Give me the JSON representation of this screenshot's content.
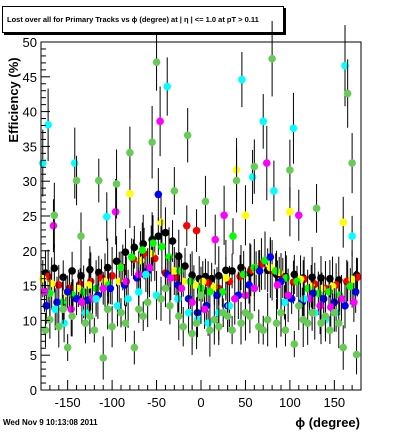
{
  "chart_data": {
    "type": "scatter",
    "title": "Lost over all for Primary Tracks vs ϕ (degree) at | η | <= 1.0 at pT > 0.11",
    "xlabel": "ϕ (degree)",
    "ylabel": "Efficiency (%)",
    "xlim": [
      -180,
      180
    ],
    "ylim": [
      0,
      50
    ],
    "xticks": [
      -150,
      -100,
      -50,
      0,
      50,
      100,
      150
    ],
    "yticks": [
      0,
      5,
      10,
      15,
      20,
      25,
      30,
      35,
      40,
      45,
      50
    ],
    "grid": false,
    "legend": "none",
    "series": [
      {
        "color": "#000000",
        "points": [
          [
            -175,
            16.8
          ],
          [
            -165,
            17.5
          ],
          [
            -155,
            16.2
          ],
          [
            -145,
            17.1
          ],
          [
            -135,
            16.4
          ],
          [
            -125,
            17.3
          ],
          [
            -115,
            16.9
          ],
          [
            -105,
            17.6
          ],
          [
            -95,
            18.5
          ],
          [
            -85,
            19.8
          ],
          [
            -75,
            20.5
          ],
          [
            -65,
            21.0
          ],
          [
            -55,
            21.6
          ],
          [
            -48,
            22.1
          ],
          [
            -40,
            22.6
          ],
          [
            -32,
            21.4
          ],
          [
            -25,
            19.2
          ],
          [
            -18,
            17.8
          ],
          [
            -10,
            16.5
          ],
          [
            -2,
            16.0
          ],
          [
            5,
            16.3
          ],
          [
            12,
            16.0
          ],
          [
            20,
            16.4
          ],
          [
            28,
            17.2
          ],
          [
            35,
            17.1
          ],
          [
            45,
            17.6
          ],
          [
            55,
            16.8
          ],
          [
            65,
            17.4
          ],
          [
            75,
            17.2
          ],
          [
            85,
            16.6
          ],
          [
            95,
            16.3
          ],
          [
            105,
            16.6
          ],
          [
            115,
            16.1
          ],
          [
            125,
            16.2
          ],
          [
            135,
            16.1
          ],
          [
            145,
            16.0
          ],
          [
            155,
            15.8
          ],
          [
            165,
            15.6
          ],
          [
            175,
            16.5
          ]
        ]
      },
      {
        "color": "#ff0000",
        "points": [
          [
            -172,
            16.3
          ],
          [
            -160,
            15.1
          ],
          [
            -148,
            14.6
          ],
          [
            -136,
            15.2
          ],
          [
            -124,
            15.6
          ],
          [
            -112,
            16.1
          ],
          [
            -100,
            16.4
          ],
          [
            -88,
            17.6
          ],
          [
            -76,
            18.8
          ],
          [
            -64,
            19.6
          ],
          [
            -52,
            18.9
          ],
          [
            -40,
            16.8
          ],
          [
            -28,
            16.2
          ],
          [
            -16,
            23.6
          ],
          [
            -5,
            22.9
          ],
          [
            8,
            15.4
          ],
          [
            20,
            14.6
          ],
          [
            32,
            15.6
          ],
          [
            44,
            16.3
          ],
          [
            56,
            17.2
          ],
          [
            68,
            18.1
          ],
          [
            80,
            17.2
          ],
          [
            92,
            16.1
          ],
          [
            104,
            15.5
          ],
          [
            116,
            15.9
          ],
          [
            128,
            15.2
          ],
          [
            140,
            14.6
          ],
          [
            152,
            15.1
          ],
          [
            164,
            15.6
          ],
          [
            176,
            16.2
          ]
        ]
      },
      {
        "color": "#ffff00",
        "points": [
          [
            -178,
            16.0
          ],
          [
            -168,
            15.3
          ],
          [
            -152,
            13.9
          ],
          [
            -138,
            14.6
          ],
          [
            -126,
            15.1
          ],
          [
            -108,
            15.6
          ],
          [
            -92,
            15.6
          ],
          [
            -80,
            28.2
          ],
          [
            -68,
            18.6
          ],
          [
            -56,
            19.6
          ],
          [
            -45,
            24.1
          ],
          [
            -30,
            17.1
          ],
          [
            -20,
            15.6
          ],
          [
            -8,
            15.1
          ],
          [
            2,
            15.6
          ],
          [
            15,
            14.8
          ],
          [
            28,
            16.1
          ],
          [
            40,
            31.6
          ],
          [
            50,
            25.1
          ],
          [
            62,
            17.1
          ],
          [
            78,
            17.6
          ],
          [
            88,
            16.9
          ],
          [
            100,
            25.6
          ],
          [
            112,
            15.9
          ],
          [
            124,
            14.9
          ],
          [
            136,
            14.6
          ],
          [
            148,
            14.9
          ],
          [
            160,
            24.1
          ],
          [
            170,
            15.9
          ]
        ]
      },
      {
        "color": "#00ff00",
        "points": [
          [
            -170,
            13.9
          ],
          [
            -156,
            12.6
          ],
          [
            -144,
            13.6
          ],
          [
            -132,
            14.1
          ],
          [
            -118,
            14.6
          ],
          [
            -104,
            15.1
          ],
          [
            -90,
            17.6
          ],
          [
            -78,
            19.1
          ],
          [
            -66,
            20.1
          ],
          [
            -54,
            21.1
          ],
          [
            -44,
            20.6
          ],
          [
            -36,
            19.1
          ],
          [
            -24,
            17.1
          ],
          [
            -12,
            15.6
          ],
          [
            0,
            14.6
          ],
          [
            10,
            14.1
          ],
          [
            24,
            14.1
          ],
          [
            36,
            22.1
          ],
          [
            48,
            16.6
          ],
          [
            60,
            17.6
          ],
          [
            72,
            18.6
          ],
          [
            84,
            17.1
          ],
          [
            96,
            16.1
          ],
          [
            108,
            15.6
          ],
          [
            120,
            14.6
          ],
          [
            132,
            13.9
          ],
          [
            144,
            14.1
          ],
          [
            156,
            13.6
          ],
          [
            168,
            14.9
          ]
        ]
      },
      {
        "color": "#0000ff",
        "points": [
          [
            -174,
            12.1
          ],
          [
            -162,
            12.6
          ],
          [
            -150,
            14.1
          ],
          [
            -140,
            13.1
          ],
          [
            -128,
            12.9
          ],
          [
            -116,
            13.6
          ],
          [
            -102,
            14.6
          ],
          [
            -86,
            15.1
          ],
          [
            -72,
            16.1
          ],
          [
            -60,
            17.1
          ],
          [
            -48,
            28.1
          ],
          [
            -38,
            16.6
          ],
          [
            -26,
            15.1
          ],
          [
            -14,
            13.1
          ],
          [
            -4,
            11.1
          ],
          [
            6,
            12.1
          ],
          [
            18,
            13.6
          ],
          [
            30,
            12.1
          ],
          [
            42,
            13.6
          ],
          [
            54,
            15.1
          ],
          [
            66,
            17.1
          ],
          [
            78,
            19.1
          ],
          [
            90,
            15.6
          ],
          [
            102,
            13.1
          ],
          [
            114,
            12.6
          ],
          [
            126,
            13.9
          ],
          [
            138,
            13.1
          ],
          [
            150,
            12.6
          ],
          [
            162,
            12.1
          ],
          [
            174,
            14.1
          ]
        ]
      },
      {
        "color": "#ff00ff",
        "points": [
          [
            -176,
            14.1
          ],
          [
            -166,
            23.6
          ],
          [
            -146,
            11.6
          ],
          [
            -134,
            12.6
          ],
          [
            -122,
            13.1
          ],
          [
            -110,
            14.6
          ],
          [
            -96,
            25.6
          ],
          [
            -84,
            15.6
          ],
          [
            -70,
            16.6
          ],
          [
            -58,
            17.6
          ],
          [
            -46,
            38.6
          ],
          [
            -34,
            16.1
          ],
          [
            -22,
            14.6
          ],
          [
            -10,
            12.6
          ],
          [
            4,
            11.6
          ],
          [
            16,
            21.6
          ],
          [
            26,
            25.1
          ],
          [
            38,
            13.1
          ],
          [
            50,
            13.6
          ],
          [
            60,
            14.6
          ],
          [
            74,
            32.6
          ],
          [
            86,
            15.1
          ],
          [
            98,
            13.6
          ],
          [
            110,
            25.1
          ],
          [
            122,
            13.1
          ],
          [
            134,
            12.1
          ],
          [
            146,
            11.9
          ],
          [
            158,
            13.1
          ],
          [
            172,
            12.6
          ]
        ]
      },
      {
        "color": "#00ffff",
        "points": [
          [
            -178,
            32.6
          ],
          [
            -172,
            38.1
          ],
          [
            -164,
            11.6
          ],
          [
            -154,
            9.6
          ],
          [
            -142,
            32.6
          ],
          [
            -130,
            11.1
          ],
          [
            -118,
            13.1
          ],
          [
            -106,
            24.9
          ],
          [
            -94,
            12.1
          ],
          [
            -82,
            13.1
          ],
          [
            -70,
            14.1
          ],
          [
            -62,
            16.6
          ],
          [
            -50,
            13.6
          ],
          [
            -38,
            43.6
          ],
          [
            -26,
            13.1
          ],
          [
            -14,
            11.1
          ],
          [
            -4,
            10.1
          ],
          [
            8,
            9.6
          ],
          [
            20,
            11.1
          ],
          [
            32,
            12.1
          ],
          [
            46,
            44.6
          ],
          [
            58,
            30.6
          ],
          [
            70,
            38.6
          ],
          [
            82,
            28.6
          ],
          [
            94,
            12.6
          ],
          [
            104,
            37.6
          ],
          [
            116,
            13.1
          ],
          [
            128,
            11.1
          ],
          [
            140,
            10.1
          ],
          [
            152,
            11.1
          ],
          [
            162,
            46.6
          ],
          [
            170,
            22.1
          ]
        ]
      },
      {
        "color": "#66cc55",
        "points": [
          [
            -175,
            8.6
          ],
          [
            -170,
            10.1
          ],
          [
            -165,
            25.1
          ],
          [
            -160,
            9.1
          ],
          [
            -155,
            11.6
          ],
          [
            -150,
            6.1
          ],
          [
            -145,
            10.6
          ],
          [
            -140,
            30.1
          ],
          [
            -135,
            22.1
          ],
          [
            -130,
            9.6
          ],
          [
            -125,
            10.6
          ],
          [
            -120,
            8.6
          ],
          [
            -115,
            30.1
          ],
          [
            -110,
            4.6
          ],
          [
            -105,
            11.6
          ],
          [
            -100,
            9.1
          ],
          [
            -95,
            29.6
          ],
          [
            -90,
            11.1
          ],
          [
            -85,
            9.6
          ],
          [
            -80,
            34.1
          ],
          [
            -75,
            6.1
          ],
          [
            -70,
            11.6
          ],
          [
            -65,
            10.6
          ],
          [
            -60,
            12.6
          ],
          [
            -55,
            35.6
          ],
          [
            -50,
            47.1
          ],
          [
            -45,
            13.1
          ],
          [
            -40,
            14.6
          ],
          [
            -35,
            12.1
          ],
          [
            -30,
            28.6
          ],
          [
            -25,
            10.6
          ],
          [
            -20,
            9.1
          ],
          [
            -15,
            36.6
          ],
          [
            -10,
            8.1
          ],
          [
            -5,
            9.6
          ],
          [
            0,
            13.6
          ],
          [
            5,
            27.1
          ],
          [
            10,
            8.6
          ],
          [
            15,
            10.1
          ],
          [
            20,
            9.1
          ],
          [
            25,
            11.1
          ],
          [
            30,
            10.6
          ],
          [
            35,
            8.6
          ],
          [
            40,
            30.1
          ],
          [
            45,
            9.6
          ],
          [
            50,
            11.1
          ],
          [
            55,
            10.6
          ],
          [
            60,
            32.1
          ],
          [
            65,
            9.1
          ],
          [
            70,
            8.6
          ],
          [
            75,
            10.1
          ],
          [
            80,
            47.6
          ],
          [
            85,
            9.6
          ],
          [
            90,
            11.1
          ],
          [
            95,
            8.6
          ],
          [
            100,
            31.6
          ],
          [
            105,
            6.6
          ],
          [
            110,
            12.1
          ],
          [
            115,
            10.1
          ],
          [
            120,
            9.6
          ],
          [
            125,
            11.1
          ],
          [
            130,
            26.1
          ],
          [
            135,
            9.6
          ],
          [
            140,
            10.6
          ],
          [
            145,
            8.6
          ],
          [
            150,
            11.1
          ],
          [
            155,
            9.6
          ],
          [
            160,
            6.1
          ],
          [
            165,
            42.6
          ],
          [
            170,
            32.6
          ],
          [
            175,
            5.1
          ]
        ]
      }
    ]
  },
  "footer": {
    "timestamp": "Wed Nov  9 10:13:08 2011"
  }
}
